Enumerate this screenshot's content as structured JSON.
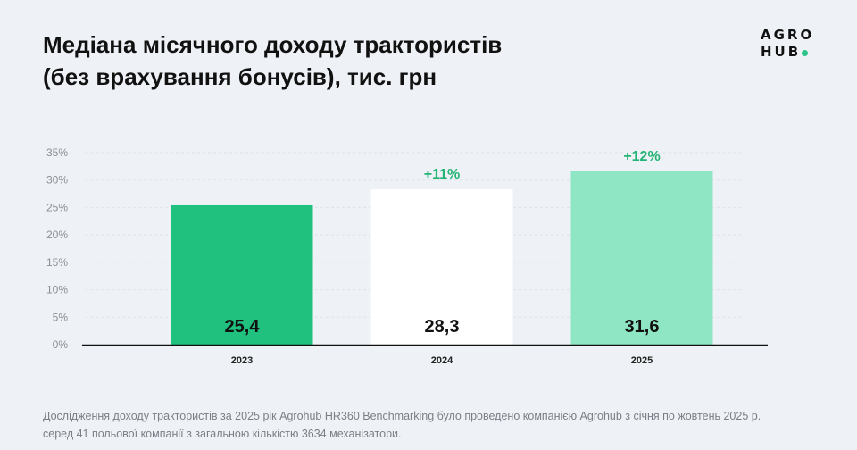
{
  "title_line1": "Медіана місячного доходу трактористів",
  "title_line2": "(без врахування бонусів), тис. грн",
  "logo": {
    "line1": "AGRO",
    "line2": "HUB",
    "dot_color": "#2bc48a"
  },
  "chart_data": {
    "type": "bar",
    "categories": [
      "2023",
      "2024",
      "2025"
    ],
    "values": [
      25.4,
      28.3,
      31.6
    ],
    "value_labels": [
      "25,4",
      "28,3",
      "31,6"
    ],
    "growth_labels": [
      "",
      "+11%",
      "+12%"
    ],
    "colors": [
      "#20c17f",
      "#ffffff",
      "#8fe6c4"
    ],
    "growth_color": "#22b474",
    "yticks": [
      "0%",
      "5%",
      "10%",
      "15%",
      "20%",
      "25%",
      "30%",
      "35%"
    ],
    "ylim": [
      0,
      35
    ],
    "grid": true
  },
  "footnote_line1": "Дослідження доходу трактористів за 2025 рік Agrohub HR360 Benchmarking було проведено компанією Agrohub з січня по жовтень 2025 р.",
  "footnote_line2": "серед 41 польової компанії з загальною кількістю 3634 механізатори."
}
